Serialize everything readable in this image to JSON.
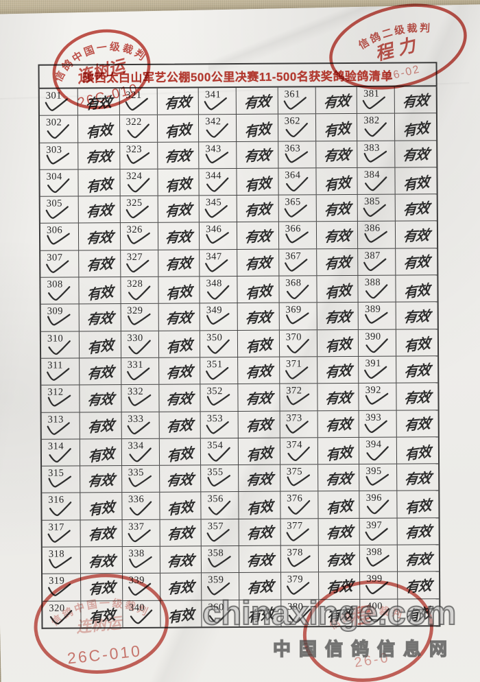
{
  "document": {
    "title": "陕西太白山军艺公棚500公里决赛11-500名获奖鸽验鸽清单"
  },
  "table": {
    "mark_label": "有效",
    "numbers": [
      [
        301,
        321,
        341,
        361,
        381
      ],
      [
        302,
        322,
        342,
        362,
        382
      ],
      [
        303,
        323,
        343,
        363,
        383
      ],
      [
        304,
        324,
        344,
        364,
        384
      ],
      [
        305,
        325,
        345,
        365,
        385
      ],
      [
        306,
        326,
        346,
        366,
        386
      ],
      [
        307,
        327,
        347,
        367,
        387
      ],
      [
        308,
        328,
        348,
        368,
        388
      ],
      [
        309,
        329,
        349,
        369,
        389
      ],
      [
        310,
        330,
        350,
        370,
        390
      ],
      [
        311,
        331,
        351,
        371,
        391
      ],
      [
        312,
        332,
        352,
        372,
        392
      ],
      [
        313,
        333,
        353,
        373,
        393
      ],
      [
        314,
        334,
        354,
        374,
        394
      ],
      [
        315,
        335,
        355,
        375,
        395
      ],
      [
        316,
        336,
        356,
        376,
        396
      ],
      [
        317,
        337,
        357,
        377,
        397
      ],
      [
        318,
        338,
        358,
        378,
        398
      ],
      [
        319,
        339,
        359,
        379,
        399
      ],
      [
        320,
        340,
        360,
        380,
        400
      ]
    ]
  },
  "stamps": {
    "top_left": {
      "ring_text": "信鸽中国一级裁判",
      "name": "连树运",
      "code": "26C-010"
    },
    "top_right": {
      "ring_text": "信鸽二级裁判",
      "name": "程 力",
      "code": "26-02"
    },
    "bottom_left": {
      "ring_text": "信鸽中国一级裁判",
      "name": "连树运",
      "code": "26C-010"
    },
    "bottom_right": {
      "ring_text": "信鸽二级裁判",
      "name": "程",
      "code": "26-0"
    }
  },
  "watermark": {
    "site": "chinaxinge.com",
    "site_name": "中国信鸽信息网"
  },
  "colors": {
    "stamp_red": "#bf4036",
    "title_red": "#b23a30",
    "ink": "#2c2c2c",
    "paper": "#f1efec",
    "background": "#c4b89c"
  }
}
